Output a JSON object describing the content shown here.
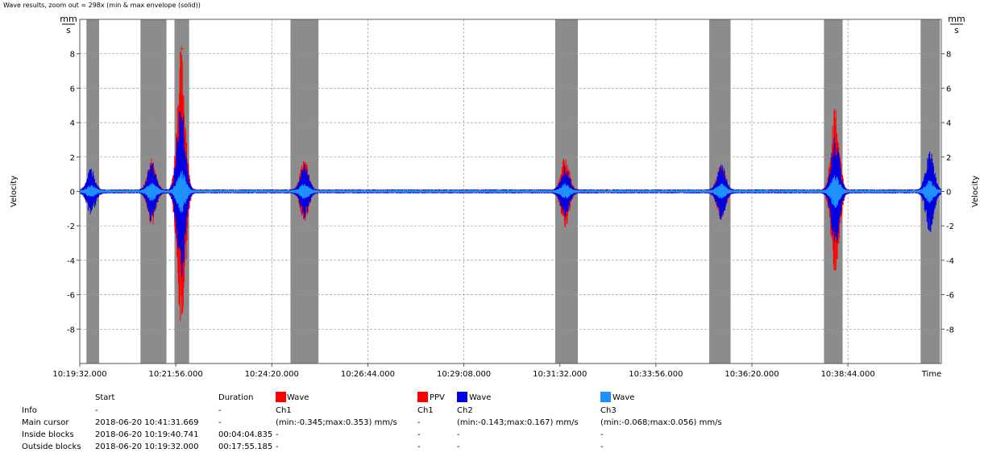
{
  "header": {
    "title": "Wave results, zoom out = 298x (min & max envelope (solid))"
  },
  "chart_data": {
    "type": "line",
    "ylabel_left": "Velocity",
    "ylabel_right": "Velocity",
    "unit_num": "mm",
    "unit_den": "s",
    "x_axis_end_label": "Time",
    "ylim": [
      -10,
      10
    ],
    "y_ticks": [
      8,
      6,
      4,
      2,
      0,
      -2,
      -4,
      -6,
      -8
    ],
    "x_ticks": [
      "10:19:32.000",
      "10:21:56.000",
      "10:24:20.000",
      "10:26:44.000",
      "10:29:08.000",
      "10:31:32.000",
      "10:33:56.000",
      "10:36:20.000",
      "10:38:44.000"
    ],
    "x_range_seconds": [
      0,
      1292
    ],
    "grid": true,
    "shaded_blocks_seconds": [
      [
        10,
        29
      ],
      [
        91,
        130
      ],
      [
        142,
        164
      ],
      [
        316,
        358
      ],
      [
        713,
        747
      ],
      [
        944,
        976
      ],
      [
        1116,
        1144
      ],
      [
        1261,
        1290
      ]
    ],
    "events_seconds": [
      {
        "t": 17,
        "red": 0.9,
        "blue": 1.3,
        "cyan": 0.3
      },
      {
        "t": 108,
        "red": 1.9,
        "blue": 1.7,
        "cyan": 0.5
      },
      {
        "t": 152,
        "red": 8.3,
        "blue": 5.2,
        "cyan": 1.2
      },
      {
        "t": 337,
        "red": 1.8,
        "blue": 1.5,
        "cyan": 0.4
      },
      {
        "t": 728,
        "red": 2.0,
        "blue": 1.5,
        "cyan": 0.4
      },
      {
        "t": 962,
        "red": 1.6,
        "blue": 1.6,
        "cyan": 0.4
      },
      {
        "t": 1133,
        "red": 4.8,
        "blue": 3.2,
        "cyan": 0.9
      },
      {
        "t": 1275,
        "red": 1.5,
        "blue": 2.4,
        "cyan": 0.6
      }
    ],
    "series": [
      {
        "name": "Wave",
        "channel": "Ch1",
        "color": "#ff0000"
      },
      {
        "name": "PPV",
        "channel": "Ch1",
        "color": "#ff0000"
      },
      {
        "name": "Wave",
        "channel": "Ch2",
        "color": "#0000e0"
      },
      {
        "name": "Wave",
        "channel": "Ch3",
        "color": "#1e90ff"
      }
    ]
  },
  "table": {
    "header_start": "Start",
    "header_duration": "Duration",
    "legend_wave1": "Wave",
    "legend_ppv": "PPV",
    "legend_wave2": "Wave",
    "legend_wave3": "Wave",
    "rows": [
      {
        "label": "Info",
        "start": "-",
        "duration": "-",
        "ch1": "Ch1",
        "ppv": "Ch1",
        "ch2": "Ch2",
        "ch3": "Ch3"
      },
      {
        "label": "Main cursor",
        "start": "2018-06-20 10:41:31.669",
        "duration": "-",
        "ch1": "(min:-0.345;max:0.353) mm/s",
        "ppv": "-",
        "ch2": "(min:-0.143;max:0.167) mm/s",
        "ch3": "(min:-0.068;max:0.056) mm/s"
      },
      {
        "label": "Inside blocks",
        "start": "2018-06-20 10:19:40.741",
        "duration": "00:04:04.835",
        "ch1": "-",
        "ppv": "-",
        "ch2": "-",
        "ch3": "-"
      },
      {
        "label": "Outside blocks",
        "start": "2018-06-20 10:19:32.000",
        "duration": "00:17:55.185",
        "ch1": "-",
        "ppv": "-",
        "ch2": "-",
        "ch3": "-"
      }
    ]
  },
  "colors": {
    "ch1": "#ff0000",
    "ch2": "#0000e0",
    "ch3": "#1e90ff",
    "block": "#8c8c8c"
  }
}
